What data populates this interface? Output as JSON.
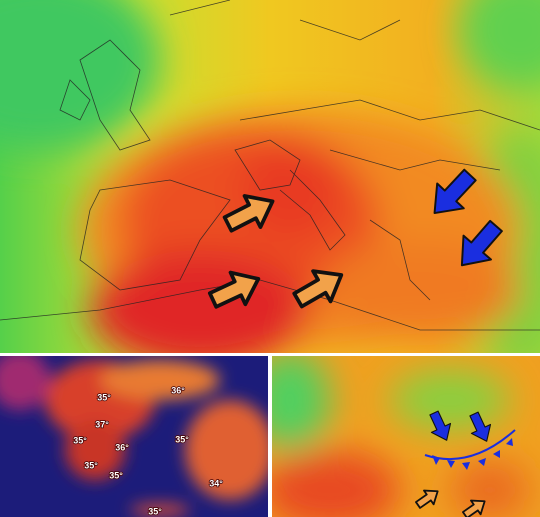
{
  "inset_labels": [
    "36°",
    "35°",
    "37°",
    "35°",
    "36°",
    "35°",
    "35°",
    "35°",
    "34°",
    "35°"
  ]
}
